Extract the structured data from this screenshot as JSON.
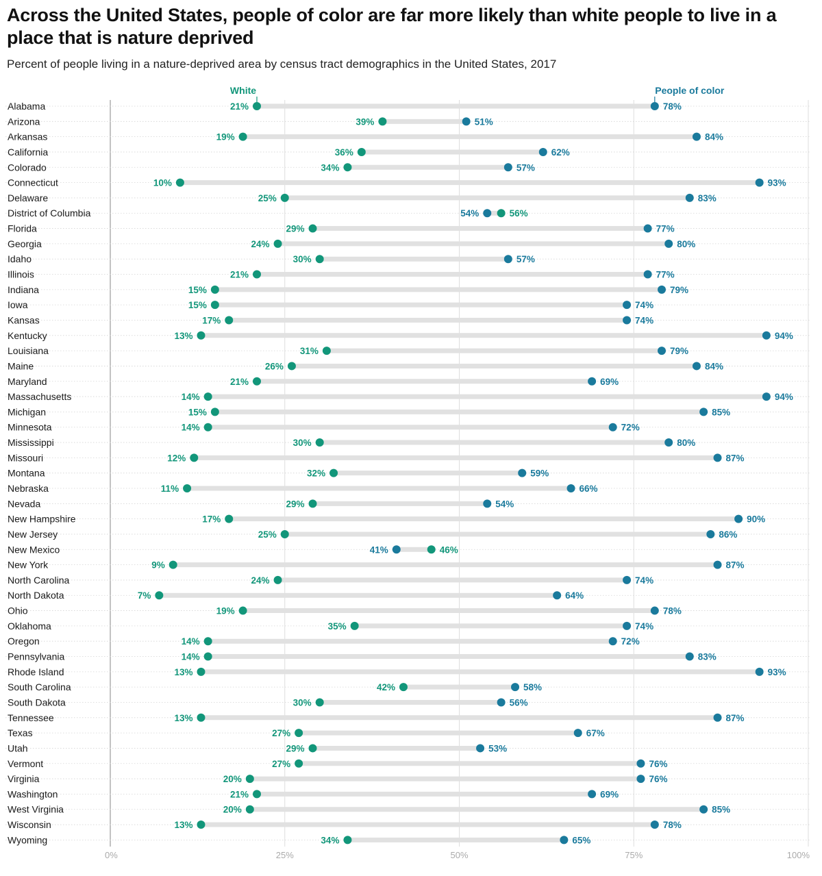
{
  "title": "Across the United States, people of color are far more likely than white people to live in a place that is nature deprived",
  "subtitle": "Percent of people living in a nature-deprived area by census tract demographics in the United States, 2017",
  "colors": {
    "white": "#12967a",
    "people_of_color": "#1a7a9c",
    "connector": "#e1e1e1",
    "grid": "#dddddd",
    "row_rule": "#d4d4d4",
    "axis": "#999999"
  },
  "chart_data": {
    "type": "dumbbell",
    "xlim": [
      0,
      100
    ],
    "x_ticks": [
      "0%",
      "25%",
      "50%",
      "75%",
      "100%"
    ],
    "grid": true,
    "legend": "top, above first row",
    "series": [
      {
        "name": "White",
        "values": [
          21,
          39,
          19,
          36,
          34,
          10,
          25,
          56,
          29,
          24,
          30,
          21,
          15,
          15,
          17,
          13,
          31,
          26,
          21,
          14,
          15,
          14,
          30,
          12,
          32,
          11,
          29,
          17,
          25,
          46,
          9,
          24,
          7,
          19,
          35,
          14,
          14,
          13,
          42,
          30,
          13,
          27,
          29,
          27,
          20,
          21,
          20,
          13,
          34
        ]
      },
      {
        "name": "People of color",
        "values": [
          78,
          51,
          84,
          62,
          57,
          93,
          83,
          54,
          77,
          80,
          57,
          77,
          79,
          74,
          74,
          94,
          79,
          84,
          69,
          94,
          85,
          72,
          80,
          87,
          59,
          66,
          54,
          90,
          86,
          41,
          87,
          74,
          64,
          78,
          74,
          72,
          83,
          93,
          58,
          56,
          87,
          67,
          53,
          76,
          76,
          69,
          85,
          78,
          65
        ]
      }
    ],
    "categories": [
      "Alabama",
      "Arizona",
      "Arkansas",
      "California",
      "Colorado",
      "Connecticut",
      "Delaware",
      "District of Columbia",
      "Florida",
      "Georgia",
      "Idaho",
      "Illinois",
      "Indiana",
      "Iowa",
      "Kansas",
      "Kentucky",
      "Louisiana",
      "Maine",
      "Maryland",
      "Massachusetts",
      "Michigan",
      "Minnesota",
      "Mississippi",
      "Missouri",
      "Montana",
      "Nebraska",
      "Nevada",
      "New Hampshire",
      "New Jersey",
      "New Mexico",
      "New York",
      "North Carolina",
      "North Dakota",
      "Ohio",
      "Oklahoma",
      "Oregon",
      "Pennsylvania",
      "Rhode Island",
      "South Carolina",
      "South Dakota",
      "Tennessee",
      "Texas",
      "Utah",
      "Vermont",
      "Virginia",
      "Washington",
      "West Virginia",
      "Wisconsin",
      "Wyoming"
    ]
  }
}
